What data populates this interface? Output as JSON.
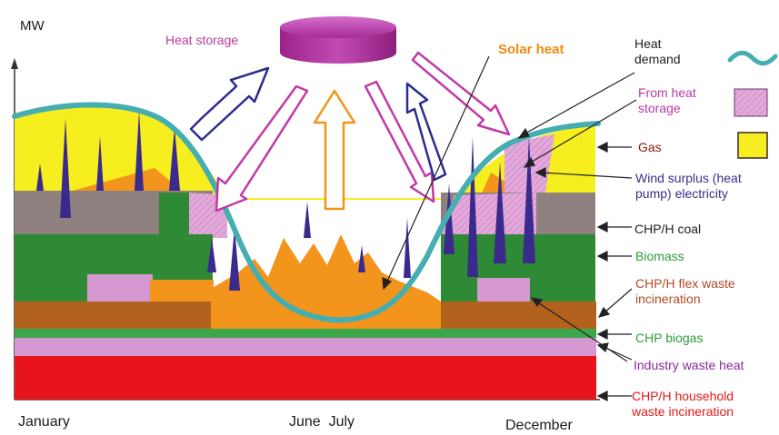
{
  "y_axis_label": "MW",
  "x_axis_labels": {
    "january": "January",
    "june_july": "June  July",
    "december": "December"
  },
  "top_labels": {
    "heat_storage": "Heat storage",
    "solar_heat": "Solar heat"
  },
  "legend": [
    {
      "id": "heat-demand",
      "label_lines": [
        "Heat",
        "demand"
      ],
      "color": "#1d1d1d",
      "symbol": "wave",
      "symbol_color": "#3fa8a6"
    },
    {
      "id": "from-heat-storage",
      "label_lines": [
        "From heat",
        "storage"
      ],
      "color": "#b83aa4",
      "symbol": "hatched",
      "symbol_color": "#d9a7d2"
    },
    {
      "id": "gas",
      "label_lines": [
        "Gas"
      ],
      "color": "#8a1a10",
      "symbol": "box",
      "symbol_color": "#f3ee1b"
    },
    {
      "id": "wind-surplus",
      "label_lines": [
        "Wind surplus (heat",
        "pump) electricity"
      ],
      "color": "#3a2f8a"
    },
    {
      "id": "chp-coal",
      "label_lines": [
        "CHP/H coal"
      ],
      "color": "#1d1d1d"
    },
    {
      "id": "biomass",
      "label_lines": [
        "Biomass"
      ],
      "color": "#2e9b3a"
    },
    {
      "id": "chp-flex-waste",
      "label_lines": [
        "CHP/H flex waste",
        "incineration"
      ],
      "color": "#b04a22"
    },
    {
      "id": "chp-biogas",
      "label_lines": [
        "CHP biogas"
      ],
      "color": "#2e9b3a"
    },
    {
      "id": "industry-waste-heat",
      "label_lines": [
        "Industry waste heat"
      ],
      "color": "#8a2a9a"
    },
    {
      "id": "chp-household-waste",
      "label_lines": [
        "CHP/H household",
        "waste incineration"
      ],
      "color": "#e21a1a"
    }
  ],
  "colors": {
    "household_waste": "#e8141b",
    "industry_waste": "#d497cf",
    "biogas": "#3aa74a",
    "flex_waste": "#b3621e",
    "biomass": "#2f8a35",
    "coal": "#8f8180",
    "gas": "#f6ee1e",
    "solar": "#f3941c",
    "storage": "#e3a9db",
    "wind": "#3b2a8e",
    "demand_curve": "#45aeb0",
    "storage_drum": "#b73aa4"
  }
}
